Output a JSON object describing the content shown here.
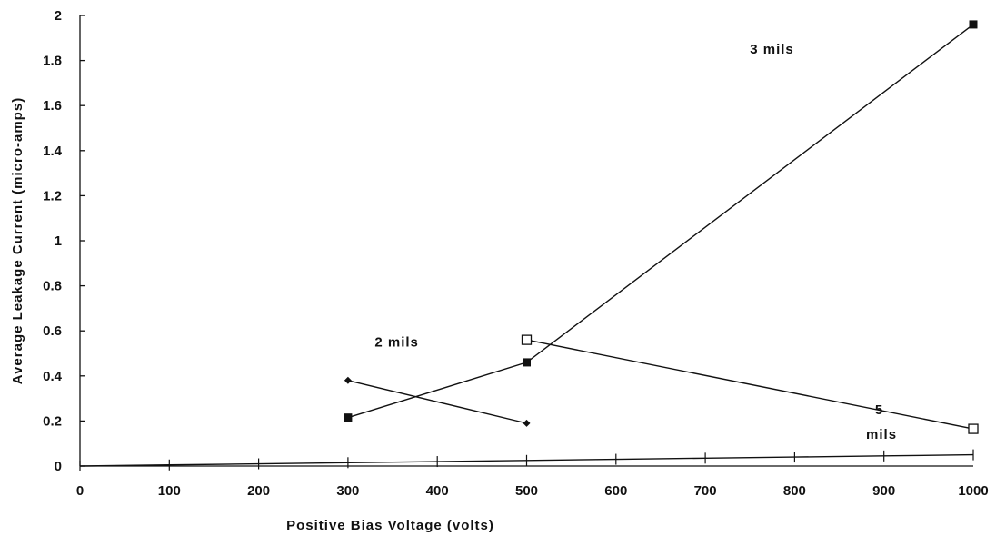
{
  "chart_data": {
    "type": "line",
    "title": "",
    "xlabel": "Positive Bias Voltage (volts)",
    "ylabel": "Average Leakage Current (micro-amps)",
    "xlim": [
      0,
      1000
    ],
    "ylim": [
      0,
      2
    ],
    "x_ticks": [
      0,
      100,
      200,
      300,
      400,
      500,
      600,
      700,
      800,
      900,
      1000
    ],
    "x_tick_labels": [
      "0",
      "100",
      "200",
      "300",
      "400",
      "500",
      "600",
      "700",
      "800",
      "900",
      "1000"
    ],
    "y_ticks": [
      0,
      0.2,
      0.4,
      0.6,
      0.8,
      1,
      1.2,
      1.4,
      1.6,
      1.8,
      2
    ],
    "y_tick_labels": [
      "0",
      "0.2",
      "0.4",
      "0.6",
      "0.8",
      "1",
      "1.2",
      "1.4",
      "1.6",
      "1.8",
      "2"
    ],
    "grid": false,
    "legend": "none",
    "series": [
      {
        "marker": "diamond-filled",
        "color": "#111111",
        "points": [
          {
            "x": 300,
            "y": 0.38
          },
          {
            "x": 500,
            "y": 0.19
          }
        ]
      },
      {
        "marker": "square-filled",
        "color": "#111111",
        "points": [
          {
            "x": 300,
            "y": 0.215
          },
          {
            "x": 500,
            "y": 0.46
          },
          {
            "x": 1000,
            "y": 1.96
          }
        ]
      },
      {
        "marker": "square-open",
        "color": "#111111",
        "points": [
          {
            "x": 500,
            "y": 0.56
          },
          {
            "x": 1000,
            "y": 0.165
          }
        ]
      },
      {
        "marker": "cross",
        "color": "#111111",
        "points": [
          {
            "x": 0,
            "y": 0.0
          },
          {
            "x": 100,
            "y": 0.005
          },
          {
            "x": 200,
            "y": 0.01
          },
          {
            "x": 300,
            "y": 0.015
          },
          {
            "x": 400,
            "y": 0.02
          },
          {
            "x": 500,
            "y": 0.025
          },
          {
            "x": 600,
            "y": 0.03
          },
          {
            "x": 700,
            "y": 0.035
          },
          {
            "x": 800,
            "y": 0.04
          },
          {
            "x": 900,
            "y": 0.045
          },
          {
            "x": 1000,
            "y": 0.05
          }
        ]
      }
    ],
    "annotations": [
      {
        "text": "2  mils",
        "x": 330,
        "y": 0.53
      },
      {
        "text": "3  mils",
        "x": 750,
        "y": 1.83
      },
      {
        "text": "5",
        "x": 890,
        "y": 0.23
      },
      {
        "text": "mils",
        "x": 880,
        "y": 0.12
      }
    ]
  }
}
